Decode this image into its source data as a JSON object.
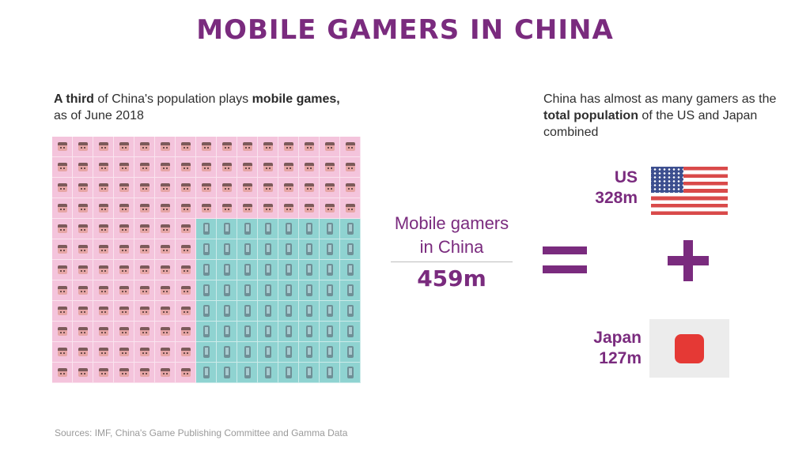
{
  "title": "MOBILE GAMERS IN CHINA",
  "left_caption": {
    "part1_bold": "A third",
    "part2": " of China's population plays ",
    "part3_bold": "mobile games,",
    "part4": "as of June 2018"
  },
  "waffle": {
    "columns": 15,
    "rows": 12,
    "legend_colors": {
      "population": "#f4c4dc",
      "mobile_gamers": "#8fd3d1"
    },
    "pink_icon": "person-face-icon",
    "teal_icon": "mobile-phone-icon"
  },
  "center": {
    "label_line1": "Mobile gamers",
    "label_line2": "in China",
    "value": "459m"
  },
  "right_caption": {
    "part1": "China has almost as many gamers as the ",
    "part2_bold": "total population",
    "part3": " of the US and Japan combined"
  },
  "us": {
    "name": "US",
    "value": "328m",
    "icon": "us-flag-icon"
  },
  "japan": {
    "name": "Japan",
    "value": "127m",
    "icon": "japan-flag-icon"
  },
  "accent_color": "#7a2b7e",
  "sources": "Sources: IMF, China's Game Publishing Committee and Gamma Data"
}
